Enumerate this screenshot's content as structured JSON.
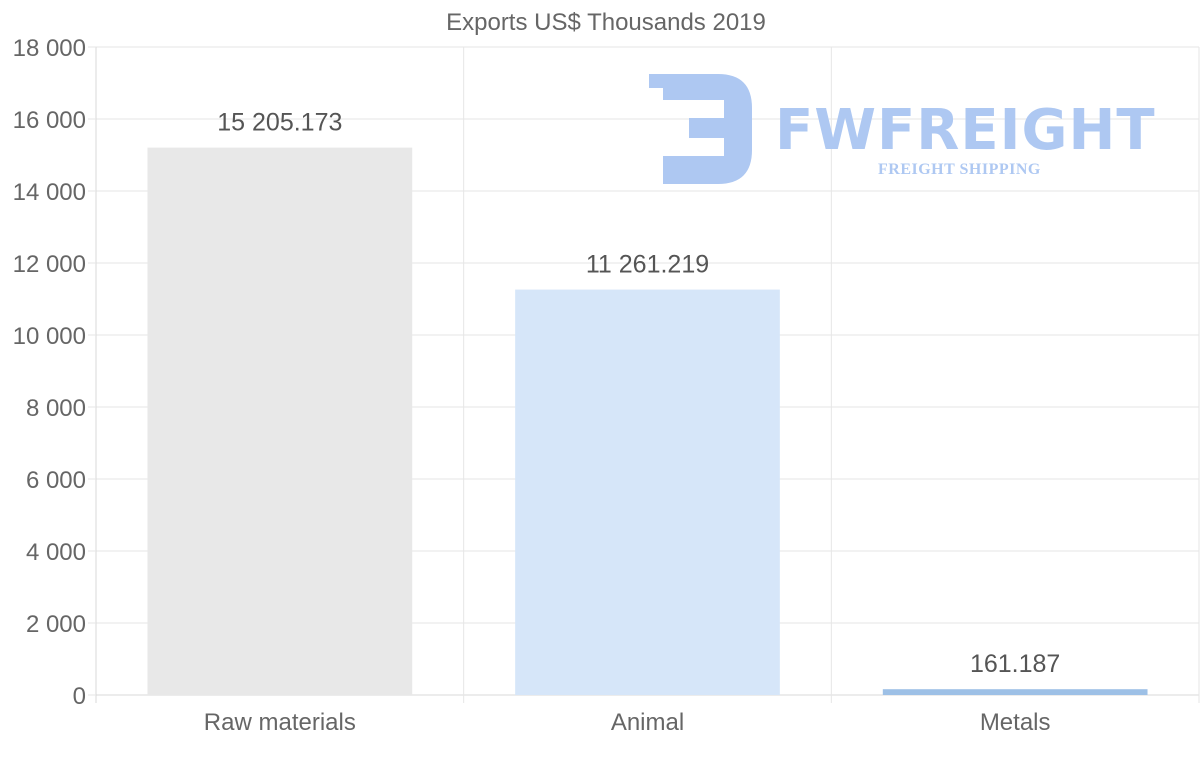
{
  "chart_data": {
    "type": "bar",
    "title": "Exports US$ Thousands 2019",
    "categories": [
      "Raw materials",
      "Animal",
      "Metals"
    ],
    "values": [
      15205.173,
      11261.219,
      161.187
    ],
    "value_labels": [
      "15 205.173",
      "11 261.219",
      "161.187"
    ],
    "colors": [
      "#e8e8e8",
      "#d6e6f9",
      "#9dc0e6"
    ],
    "ylim": [
      0,
      18000
    ],
    "yticks": [
      0,
      2000,
      4000,
      6000,
      8000,
      10000,
      12000,
      14000,
      16000,
      18000
    ],
    "ytick_labels": [
      "0",
      "2 000",
      "4 000",
      "6 000",
      "8 000",
      "10 000",
      "12 000",
      "14 000",
      "16 000",
      "18 000"
    ],
    "xlabel": "",
    "ylabel": "",
    "grid": true,
    "legend": "none"
  },
  "watermark": {
    "brand": "FWFREIGHT",
    "tagline": "FREIGHT SHIPPING",
    "color": "#aec8f2"
  }
}
